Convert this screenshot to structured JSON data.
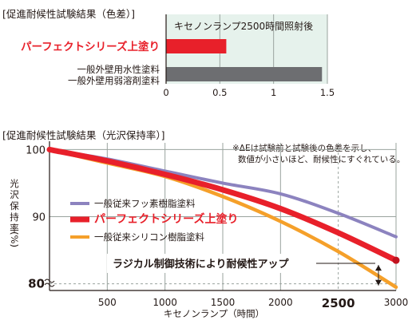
{
  "chart_data": [
    {
      "type": "bar",
      "orientation": "horizontal",
      "title": "[促進耐候性試験結果（色差）]",
      "subtitle": "キセノンランプ2500時間照射後",
      "categories": [
        "パーフェクトシリーズ上塗り",
        "一般外壁用水性塗料\n一般外壁用弱溶剤塗料"
      ],
      "category_lines": [
        [
          "パーフェクトシリーズ上塗り"
        ],
        [
          "一般外壁用水性塗料",
          "一般外壁用弱溶剤塗料"
        ]
      ],
      "values": [
        0.56,
        1.45
      ],
      "xlim": [
        0,
        1.5
      ],
      "xticks": [
        "0",
        "0.5",
        "1",
        "1.5"
      ],
      "xtick_values": [
        0,
        0.5,
        1,
        1.5
      ],
      "colors": [
        "#e8202a",
        "#6d6e71"
      ],
      "grid": true
    },
    {
      "type": "line",
      "title": "[促進耐候性試験結果（光沢保持率）]",
      "note": [
        "※ΔEは試験前と試験後の色差を示し、",
        "数値が小さいほど、耐候性にすぐれている。"
      ],
      "xlabel": "キセノンランプ（時間）",
      "ylabel": [
        "光",
        "沢",
        "保",
        "持",
        "率",
        "(%)"
      ],
      "xlim": [
        0,
        3000
      ],
      "ylim": [
        79,
        101
      ],
      "xticks": [
        "500",
        "1000",
        "1500",
        "2000",
        "2500",
        "3000"
      ],
      "xtick_values": [
        500,
        1000,
        1500,
        2000,
        2500,
        3000
      ],
      "yticks": [
        "100",
        "90",
        "80"
      ],
      "ytick_values": [
        100,
        90,
        80
      ],
      "series": [
        {
          "name": "一般従来フッ素樹脂塗料",
          "color": "#8c83bf",
          "x": [
            0,
            500,
            1000,
            1500,
            2000,
            2500,
            3000
          ],
          "y": [
            100,
            98.6,
            96.8,
            95.0,
            93.4,
            90.5,
            87.0
          ]
        },
        {
          "name": "パーフェクトシリーズ上塗り",
          "color": "#e8202a",
          "x": [
            0,
            500,
            1000,
            1500,
            2000,
            2500,
            3000
          ],
          "y": [
            100,
            98.3,
            96.3,
            94.0,
            91.2,
            87.6,
            83.5
          ]
        },
        {
          "name": "一般従来シリコン樹脂塗料",
          "color": "#f5a02a",
          "x": [
            0,
            500,
            1000,
            1500,
            2000,
            2500,
            3000
          ],
          "y": [
            100,
            98.0,
            96.0,
            93.0,
            89.3,
            84.8,
            79.5
          ]
        }
      ],
      "annotation": "ラジカル制御技術により耐候性アップ",
      "reference_line_x": 2500,
      "reference_line_y": 80,
      "colors": {
        "text": "#231815",
        "grid": "#9aa39e",
        "dashed": "#231815"
      }
    }
  ]
}
